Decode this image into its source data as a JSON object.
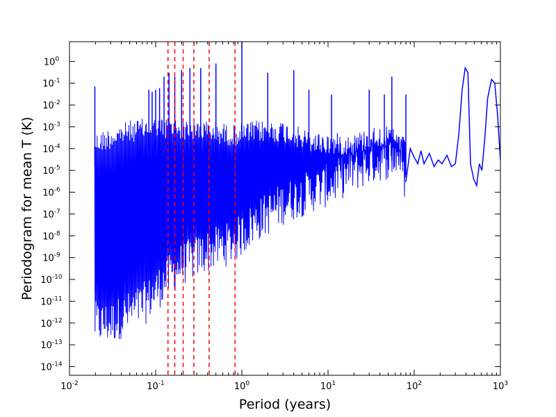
{
  "chart_data": {
    "type": "line",
    "title": "",
    "xlabel": "Period (years)",
    "ylabel": "Periodogram for mean T (K)",
    "xscale": "log",
    "yscale": "log",
    "xlim": [
      0.01,
      1000
    ],
    "ylim": [
      4e-15,
      8
    ],
    "grid": false,
    "x_ticks": [
      {
        "value": 0.01,
        "base": "10",
        "exp": "-2"
      },
      {
        "value": 0.1,
        "base": "10",
        "exp": "-1"
      },
      {
        "value": 1,
        "base": "10",
        "exp": "0"
      },
      {
        "value": 10,
        "base": "10",
        "exp": "1"
      },
      {
        "value": 100,
        "base": "10",
        "exp": "2"
      },
      {
        "value": 1000,
        "base": "10",
        "exp": "3"
      }
    ],
    "y_ticks": [
      {
        "value": 1e-14,
        "base": "10",
        "exp": "-14"
      },
      {
        "value": 1e-13,
        "base": "10",
        "exp": "-13"
      },
      {
        "value": 1e-12,
        "base": "10",
        "exp": "-12"
      },
      {
        "value": 1e-11,
        "base": "10",
        "exp": "-11"
      },
      {
        "value": 1e-10,
        "base": "10",
        "exp": "-10"
      },
      {
        "value": 1e-09,
        "base": "10",
        "exp": "-9"
      },
      {
        "value": 1e-08,
        "base": "10",
        "exp": "-8"
      },
      {
        "value": 1e-07,
        "base": "10",
        "exp": "-7"
      },
      {
        "value": 1e-06,
        "base": "10",
        "exp": "-6"
      },
      {
        "value": 1e-05,
        "base": "10",
        "exp": "-5"
      },
      {
        "value": 0.0001,
        "base": "10",
        "exp": "-4"
      },
      {
        "value": 0.001,
        "base": "10",
        "exp": "-3"
      },
      {
        "value": 0.01,
        "base": "10",
        "exp": "-2"
      },
      {
        "value": 0.1,
        "base": "10",
        "exp": "-1"
      },
      {
        "value": 1,
        "base": "10",
        "exp": "0"
      }
    ],
    "series": [
      {
        "color": "#0000ff",
        "style": "solid",
        "x_range": [
          0.0196,
          1000
        ],
        "peaks": [
          {
            "x": 0.0197,
            "y": 0.07
          },
          {
            "x": 0.0833,
            "y": 0.05
          },
          {
            "x": 0.0909,
            "y": 0.04
          },
          {
            "x": 0.1,
            "y": 0.05
          },
          {
            "x": 0.111,
            "y": 0.06
          },
          {
            "x": 0.125,
            "y": 0.2
          },
          {
            "x": 0.1429,
            "y": 0.3
          },
          {
            "x": 0.1667,
            "y": 0.2
          },
          {
            "x": 0.2,
            "y": 0.4
          },
          {
            "x": 0.25,
            "y": 0.5
          },
          {
            "x": 0.333,
            "y": 0.5
          },
          {
            "x": 0.5,
            "y": 0.8
          },
          {
            "x": 1.0,
            "y": 8
          },
          {
            "x": 2.0,
            "y": 0.3
          },
          {
            "x": 4.0,
            "y": 0.4
          },
          {
            "x": 6.0,
            "y": 0.05
          },
          {
            "x": 11.0,
            "y": 0.03
          },
          {
            "x": 30.0,
            "y": 0.05
          },
          {
            "x": 45.0,
            "y": 0.03
          },
          {
            "x": 55.0,
            "y": 0.2
          },
          {
            "x": 80.0,
            "y": 0.03
          }
        ],
        "envelope": [
          {
            "x": 0.0196,
            "upper": 0.0008,
            "lower": 1e-13
          },
          {
            "x": 0.03,
            "upper": 0.0015,
            "lower": 1e-13
          },
          {
            "x": 0.05,
            "upper": 0.003,
            "lower": 3e-13
          },
          {
            "x": 0.08,
            "upper": 0.004,
            "lower": 1e-12
          },
          {
            "x": 0.13,
            "upper": 0.004,
            "lower": 1e-11
          },
          {
            "x": 0.2,
            "upper": 0.004,
            "lower": 5e-11
          },
          {
            "x": 0.4,
            "upper": 0.003,
            "lower": 2e-10
          },
          {
            "x": 0.8,
            "upper": 0.002,
            "lower": 5e-10
          },
          {
            "x": 1.5,
            "upper": 0.003,
            "lower": 5e-09
          },
          {
            "x": 3.0,
            "upper": 0.003,
            "lower": 3e-08
          },
          {
            "x": 6.0,
            "upper": 0.001,
            "lower": 1e-07
          },
          {
            "x": 10.0,
            "upper": 0.0008,
            "lower": 2e-07
          },
          {
            "x": 20.0,
            "upper": 0.0008,
            "lower": 1e-06
          },
          {
            "x": 40.0,
            "upper": 0.002,
            "lower": 3e-06
          },
          {
            "x": 70.0,
            "upper": 0.001,
            "lower": 5e-06
          },
          {
            "x": 80.0,
            "upper": 0.0003,
            "lower": 5e-08
          }
        ],
        "tail": [
          [
            80,
            3e-06
          ],
          [
            90,
            0.0001
          ],
          [
            100,
            4e-05
          ],
          [
            110,
            2e-05
          ],
          [
            120,
            8e-05
          ],
          [
            130,
            2e-05
          ],
          [
            150,
            6e-05
          ],
          [
            170,
            1.5e-05
          ],
          [
            190,
            3e-05
          ],
          [
            210,
            2e-05
          ],
          [
            240,
            5e-05
          ],
          [
            270,
            1.5e-05
          ],
          [
            300,
            2e-05
          ],
          [
            330,
            0.0005
          ],
          [
            360,
            0.05
          ],
          [
            390,
            0.5
          ],
          [
            420,
            0.3
          ],
          [
            450,
            2e-05
          ],
          [
            490,
            4e-06
          ],
          [
            530,
            2e-06
          ],
          [
            570,
            2e-05
          ],
          [
            610,
            1e-05
          ],
          [
            660,
            0.0003
          ],
          [
            710,
            0.02
          ],
          [
            790,
            0.15
          ],
          [
            860,
            0.1
          ],
          [
            930,
            0.003
          ],
          [
            1000,
            3e-05
          ]
        ]
      },
      {
        "color": "#ff0000",
        "style": "dashed",
        "vlines": [
          0.1389,
          0.1667,
          0.2083,
          0.2778,
          0.4167,
          0.8333
        ]
      }
    ]
  }
}
